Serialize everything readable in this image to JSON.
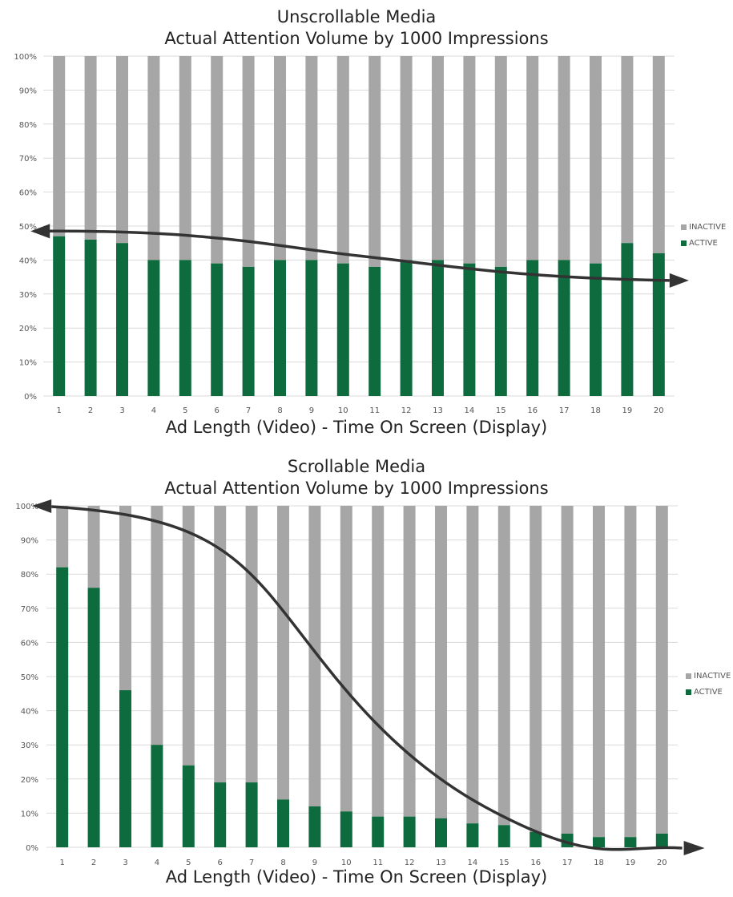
{
  "colors": {
    "active": "#0e6b3e",
    "inactive": "#a6a6a6",
    "grid": "#d9d9d9",
    "arrow": "#333333"
  },
  "chart_data": [
    {
      "type": "bar",
      "stacked": true,
      "title_line1": "Unscrollable Media",
      "title_line2": "Actual Attention Volume by 1000 Impressions",
      "xlabel": "Ad Length (Video) - Time On Screen (Display)",
      "ylabel": "",
      "ylim": [
        0,
        100
      ],
      "yticks": [
        "0%",
        "10%",
        "20%",
        "30%",
        "40%",
        "50%",
        "60%",
        "70%",
        "80%",
        "90%",
        "100%"
      ],
      "categories": [
        "1",
        "2",
        "3",
        "4",
        "5",
        "6",
        "7",
        "8",
        "9",
        "10",
        "11",
        "12",
        "13",
        "14",
        "15",
        "16",
        "17",
        "18",
        "19",
        "20"
      ],
      "series": [
        {
          "name": "ACTIVE",
          "values": [
            47,
            46,
            45,
            40,
            40,
            39,
            38,
            40,
            40,
            39,
            38,
            40,
            40,
            39,
            38,
            40,
            40,
            39,
            45,
            42
          ]
        },
        {
          "name": "INACTIVE",
          "values": [
            53,
            54,
            55,
            60,
            60,
            61,
            62,
            60,
            60,
            61,
            62,
            60,
            60,
            61,
            62,
            60,
            60,
            61,
            55,
            58
          ]
        }
      ],
      "legend": {
        "position": "right",
        "entries": [
          "INACTIVE",
          "ACTIVE"
        ]
      },
      "grid": true,
      "trend_arrow": {
        "start": [
          0.2,
          48.5
        ],
        "end": [
          20.8,
          34
        ]
      }
    },
    {
      "type": "bar",
      "stacked": true,
      "title_line1": "Scrollable Media",
      "title_line2": "Actual Attention Volume by 1000 Impressions",
      "xlabel": "Ad Length (Video) - Time On Screen (Display)",
      "ylabel": "",
      "ylim": [
        0,
        100
      ],
      "yticks": [
        "0%",
        "10%",
        "20%",
        "30%",
        "40%",
        "50%",
        "60%",
        "70%",
        "80%",
        "90%",
        "100%"
      ],
      "categories": [
        "1",
        "2",
        "3",
        "4",
        "5",
        "6",
        "7",
        "8",
        "9",
        "10",
        "11",
        "12",
        "13",
        "14",
        "15",
        "16",
        "17",
        "18",
        "19",
        "20"
      ],
      "series": [
        {
          "name": "ACTIVE",
          "values": [
            82,
            76,
            46,
            30,
            24,
            19,
            19,
            14,
            12,
            10.5,
            9,
            9,
            8.5,
            7,
            6.5,
            4.5,
            4,
            3,
            3,
            4
          ]
        },
        {
          "name": "INACTIVE",
          "values": [
            18,
            24,
            54,
            70,
            76,
            81,
            81,
            86,
            88,
            89.5,
            91,
            91,
            91.5,
            93,
            93.5,
            95.5,
            96,
            97,
            97,
            96
          ]
        }
      ],
      "legend": {
        "position": "right",
        "entries": [
          "INACTIVE",
          "ACTIVE"
        ]
      },
      "grid": true,
      "trend_arrow": {
        "start": [
          0.2,
          100
        ],
        "end": [
          21.2,
          0
        ]
      }
    }
  ]
}
